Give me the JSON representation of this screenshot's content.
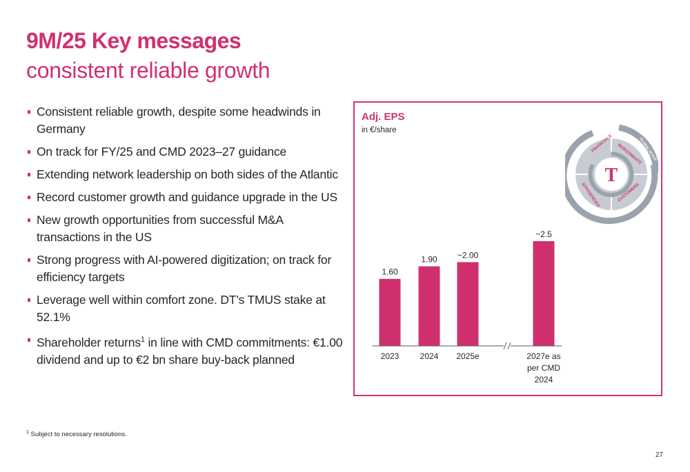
{
  "slide": {
    "title": "9M/25 Key messages",
    "subtitle": "consistent reliable growth",
    "page_number": "27",
    "accent_color": "#d1306f"
  },
  "bullets": [
    {
      "text": "Consistent reliable growth, despite some headwinds in Germany"
    },
    {
      "text": "On track for FY/25 and CMD 2023–27 guidance"
    },
    {
      "text": "Extending network leadership on both sides of the Atlantic"
    },
    {
      "text": "Record customer growth and guidance upgrade in the US"
    },
    {
      "text": "New growth opportunities from successful M&A transactions in the US"
    },
    {
      "text": "Strong progress with AI-powered digitization; on track for efficiency targets"
    },
    {
      "text": "Leverage well within comfort zone. DT’s TMUS stake at 52.1%"
    },
    {
      "text_before": "Shareholder returns",
      "sup": "1",
      "text_after": " in line with CMD commitments: €1.00 dividend and up to €2 bn share buy-back planned"
    }
  ],
  "footnote": {
    "sup": "1",
    "text": " Subject to necessary resolutions."
  },
  "chart_data": {
    "type": "bar",
    "title": "Adj. EPS",
    "ylabel": "in €/share",
    "xlabel": "",
    "categories": [
      "2023",
      "2024",
      "2025e",
      "2027e as per CMD 2024"
    ],
    "category_lines": [
      [
        "2023"
      ],
      [
        "2024"
      ],
      [
        "2025e"
      ],
      [
        "2027e as",
        "per CMD",
        "2024"
      ]
    ],
    "values": [
      1.6,
      1.9,
      2.0,
      2.5
    ],
    "data_labels": [
      "1.60",
      "1.90",
      "~2.00",
      "~2.5"
    ],
    "axis_break_after_index": 2,
    "ylim": [
      0,
      2.5
    ],
    "grid": false,
    "legend": "none",
    "bar_color": "#d1306f"
  },
  "cycle_graphic": {
    "center_logo": "T",
    "segments": [
      "FINANCIALS",
      "INVESTMENTS",
      "CUSTOMERS",
      "EFFICIENCIES"
    ],
    "inner_label": "DATA & AI",
    "outer_label": "GLOBAL SCALE"
  }
}
